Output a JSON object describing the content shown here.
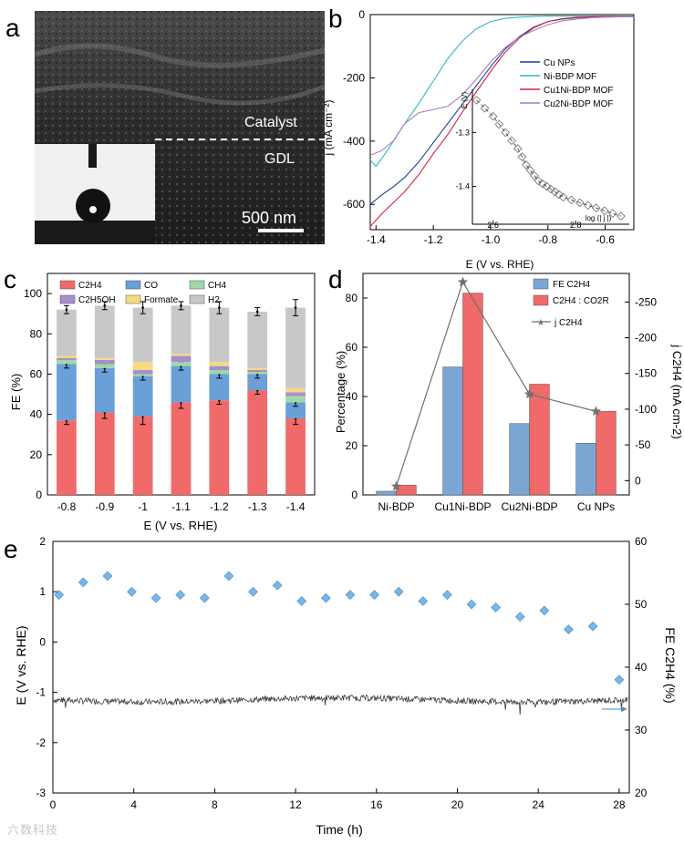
{
  "panels": {
    "a": {
      "letter": "a",
      "catalyst_label": "Catalyst",
      "gdl_label": "GDL",
      "scale_label": "500 nm"
    },
    "b": {
      "letter": "b",
      "xlabel": "E (V vs. RHE)",
      "ylabel": "j (mA cm⁻²)",
      "inset_ylabel": "E (V)",
      "inset_xlabel": "log (| j |)"
    },
    "c": {
      "letter": "c",
      "xlabel": "E (V vs. RHE)",
      "ylabel": "FE (%)"
    },
    "d": {
      "letter": "d",
      "ylabel_left": "Percentage (%)",
      "ylabel_right": "j C2H4 (mA cm-2)"
    },
    "e": {
      "letter": "e",
      "xlabel": "Time (h)",
      "ylabel_left": "E (V vs. RHE)",
      "ylabel_right": "FE C2H4 (%)"
    }
  },
  "watermark": "六数科技",
  "chart_data": [
    {
      "panel": "b",
      "type": "line",
      "xlabel": "E (V vs. RHE)",
      "ylabel": "j (mA cm-2)",
      "xlim": [
        -1.42,
        -0.5
      ],
      "ylim": [
        -680,
        0
      ],
      "xticks": [
        "-1.4",
        "-1.2",
        "-1.0",
        "-0.8",
        "-0.6"
      ],
      "yticks": [
        "-600",
        "-400",
        "-200",
        "0"
      ],
      "legend_position": "right",
      "series": [
        {
          "name": "Cu NPs",
          "color": "#1f3f8f",
          "x": [
            -1.42,
            -1.38,
            -1.34,
            -1.3,
            -1.25,
            -1.2,
            -1.15,
            -1.1,
            -1.05,
            -1.0,
            -0.95,
            -0.9,
            -0.85,
            -0.8,
            -0.75,
            -0.7,
            -0.65,
            -0.6,
            -0.55,
            -0.5
          ],
          "y": [
            -600,
            -570,
            -545,
            -515,
            -465,
            -405,
            -345,
            -285,
            -225,
            -165,
            -110,
            -70,
            -40,
            -22,
            -14,
            -10,
            -8,
            -7,
            -7,
            -7
          ]
        },
        {
          "name": "Ni-BDP MOF",
          "color": "#2fb7c8",
          "x": [
            -1.42,
            -1.4,
            -1.36,
            -1.3,
            -1.25,
            -1.2,
            -1.15,
            -1.1,
            -1.05,
            -1.0,
            -0.95,
            -0.9,
            -0.85,
            -0.8,
            -0.75,
            -0.7,
            -0.6,
            -0.5
          ],
          "y": [
            -460,
            -480,
            -430,
            -345,
            -280,
            -210,
            -140,
            -85,
            -45,
            -22,
            -12,
            -8,
            -6,
            -5,
            -5,
            -5,
            -5,
            -5
          ]
        },
        {
          "name": "Cu1Ni-BDP MOF",
          "color": "#d3233b",
          "x": [
            -1.42,
            -1.38,
            -1.34,
            -1.3,
            -1.25,
            -1.2,
            -1.15,
            -1.1,
            -1.05,
            -1.0,
            -0.95,
            -0.9,
            -0.85,
            -0.8,
            -0.75,
            -0.7,
            -0.65,
            -0.6,
            -0.55,
            -0.5
          ],
          "y": [
            -670,
            -630,
            -595,
            -560,
            -505,
            -440,
            -380,
            -310,
            -245,
            -180,
            -120,
            -75,
            -42,
            -22,
            -13,
            -9,
            -7,
            -6,
            -6,
            -6
          ]
        },
        {
          "name": "Cu2Ni-BDP MOF",
          "color": "#a57ac8",
          "x": [
            -1.42,
            -1.38,
            -1.34,
            -1.3,
            -1.25,
            -1.2,
            -1.15,
            -1.1,
            -1.05,
            -1.0,
            -0.95,
            -0.9,
            -0.85,
            -0.8,
            -0.75,
            -0.7,
            -0.65,
            -0.6,
            -0.55,
            -0.5
          ],
          "y": [
            -445,
            -430,
            -400,
            -345,
            -310,
            -300,
            -290,
            -255,
            -205,
            -150,
            -105,
            -72,
            -50,
            -32,
            -20,
            -14,
            -10,
            -8,
            -7,
            -7
          ]
        }
      ],
      "inset": {
        "type": "scatter",
        "xlabel": "log (| j |)",
        "ylabel": "E (V)",
        "xlim": [
          2.55,
          2.93
        ],
        "ylim": [
          -1.47,
          -1.22
        ],
        "xticks": [
          "2.6",
          "2.8"
        ],
        "yticks": [
          "-1.3",
          "-1.4"
        ],
        "x": [
          2.56,
          2.58,
          2.6,
          2.615,
          2.63,
          2.645,
          2.66,
          2.67,
          2.68,
          2.69,
          2.7,
          2.71,
          2.72,
          2.73,
          2.74,
          2.75,
          2.76,
          2.77,
          2.79,
          2.81,
          2.83,
          2.85,
          2.87,
          2.89,
          2.91
        ],
        "y": [
          -1.24,
          -1.255,
          -1.27,
          -1.285,
          -1.3,
          -1.315,
          -1.33,
          -1.345,
          -1.36,
          -1.37,
          -1.38,
          -1.39,
          -1.395,
          -1.4,
          -1.405,
          -1.41,
          -1.415,
          -1.42,
          -1.425,
          -1.43,
          -1.435,
          -1.44,
          -1.445,
          -1.45,
          -1.455
        ]
      }
    },
    {
      "panel": "c",
      "type": "bar",
      "stacked": true,
      "xlabel": "E (V vs. RHE)",
      "ylabel": "FE (%)",
      "ylim": [
        0,
        110
      ],
      "yticks": [
        "0",
        "20",
        "40",
        "60",
        "80",
        "100"
      ],
      "categories": [
        "-0.8",
        "-0.9",
        "-1",
        "-1.1",
        "-1.2",
        "-1.3",
        "-1.4"
      ],
      "legend_position": "top",
      "series": [
        {
          "name": "C2H4",
          "color": "#f06a6a",
          "values": [
            37,
            41,
            39,
            46,
            47,
            52,
            38
          ],
          "errors": [
            2,
            3,
            4,
            3,
            2,
            2,
            3
          ]
        },
        {
          "name": "CO",
          "color": "#6a9fd8",
          "values": [
            28,
            22,
            20,
            18,
            13,
            8,
            8
          ],
          "errors": [
            2,
            2,
            2,
            2,
            2,
            2,
            2
          ]
        },
        {
          "name": "CH4",
          "color": "#9fd9a6",
          "values": [
            2,
            2,
            1,
            2,
            2,
            1,
            3
          ],
          "errors": [
            0,
            0,
            0,
            0,
            0,
            0,
            0
          ]
        },
        {
          "name": "C2H5OH",
          "color": "#a58fd0",
          "values": [
            1,
            2,
            2,
            3,
            2,
            1,
            2
          ],
          "errors": [
            0,
            0,
            0,
            0,
            0,
            0,
            0
          ]
        },
        {
          "name": "Formate",
          "color": "#f7d982",
          "values": [
            1,
            1,
            4,
            1,
            2,
            1,
            2
          ],
          "errors": [
            0,
            0,
            0,
            0,
            0,
            0,
            0
          ]
        },
        {
          "name": "H2",
          "color": "#c8c8c8",
          "values": [
            23,
            26,
            27,
            24,
            27,
            28,
            40
          ],
          "errors": [
            2,
            2,
            3,
            2,
            3,
            2,
            4
          ]
        }
      ]
    },
    {
      "panel": "d",
      "type": "bar",
      "categories": [
        "Ni-BDP",
        "Cu1Ni-BDP",
        "Cu2Ni-BDP",
        "Cu NPs"
      ],
      "ylabel_left": "Percentage (%)",
      "ylabel_right": "j C2H4 (mA cm-2)",
      "ylim": [
        0,
        90
      ],
      "yticks": [
        "0",
        "20",
        "40",
        "60",
        "80"
      ],
      "y2lim": [
        20,
        -290
      ],
      "y2ticks": [
        "0",
        "-50",
        "-100",
        "-150",
        "-200",
        "-250"
      ],
      "legend_position": "top-right",
      "series": [
        {
          "name": "FE C2H4",
          "color": "#7ba6d4",
          "values": [
            1.5,
            52,
            29,
            21
          ]
        },
        {
          "name": "C2H4 : CO2R",
          "color": "#f06a6a",
          "values": [
            4,
            82,
            45,
            34
          ]
        },
        {
          "name": "j C2H4",
          "type": "line",
          "axis": "right",
          "color": "#707070",
          "values": [
            8,
            -278,
            -121,
            -97
          ]
        }
      ]
    },
    {
      "panel": "e",
      "type": "scatter",
      "xlabel": "Time (h)",
      "ylabel_left": "E (V vs. RHE)",
      "ylabel_right": "FE C2H4 (%)",
      "xlim": [
        0,
        28.5
      ],
      "xticks": [
        "0",
        "4",
        "8",
        "12",
        "16",
        "20",
        "24",
        "28"
      ],
      "ylim": [
        -3,
        2
      ],
      "yticks": [
        "-3",
        "-2",
        "-1",
        "0",
        "1",
        "2"
      ],
      "y2lim": [
        20,
        60
      ],
      "y2ticks": [
        "20",
        "30",
        "40",
        "50",
        "60"
      ],
      "potential_trace": {
        "mean": -1.15,
        "noise": 0.06
      },
      "fe_series": {
        "name": "FE C2H4",
        "color": "#76b6e8",
        "x": [
          0.3,
          1.5,
          2.7,
          3.9,
          5.1,
          6.3,
          7.5,
          8.7,
          9.9,
          11.1,
          12.3,
          13.5,
          14.7,
          15.9,
          17.1,
          18.3,
          19.5,
          20.7,
          21.9,
          23.1,
          24.3,
          25.5,
          26.7,
          28.0
        ],
        "y": [
          51.5,
          53.5,
          54.5,
          52,
          51,
          51.5,
          51,
          54.5,
          52,
          53,
          50.5,
          51,
          51.5,
          51.5,
          52,
          50.5,
          51.5,
          50,
          49.5,
          48,
          49,
          46,
          46.5,
          38
        ]
      }
    }
  ]
}
